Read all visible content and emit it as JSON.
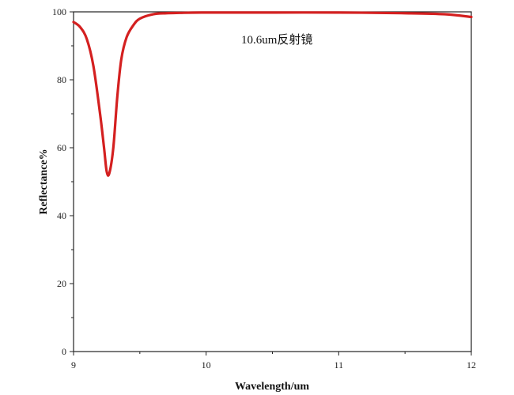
{
  "chart_data": {
    "type": "line",
    "title": "",
    "annotation": "10.6um反射镜",
    "xlabel": "Wavelength/um",
    "ylabel": "Reflectance%",
    "xlim": [
      9,
      12
    ],
    "ylim": [
      0,
      100
    ],
    "xticks": [
      "9",
      "10",
      "11",
      "12"
    ],
    "yticks": [
      "0",
      "20",
      "40",
      "60",
      "80",
      "100"
    ],
    "grid": false,
    "legend": "none",
    "series": [
      {
        "color": "#d42020",
        "x": [
          9.0,
          9.05,
          9.1,
          9.15,
          9.2,
          9.23,
          9.25,
          9.27,
          9.3,
          9.33,
          9.36,
          9.4,
          9.45,
          9.5,
          9.6,
          9.7,
          9.8,
          10.0,
          10.5,
          11.0,
          11.5,
          11.8,
          12.0
        ],
        "y": [
          97,
          95.5,
          92,
          84,
          70,
          60,
          53,
          52.5,
          60,
          75,
          86,
          92.5,
          96,
          98,
          99.3,
          99.6,
          99.7,
          99.8,
          99.8,
          99.8,
          99.6,
          99.3,
          98.5
        ]
      }
    ]
  }
}
